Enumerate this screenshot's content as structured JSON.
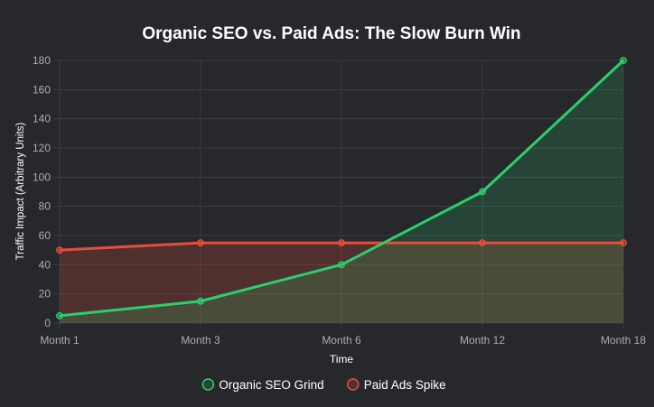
{
  "chart_data": {
    "type": "line",
    "title": "Organic SEO vs. Paid Ads: The Slow Burn Win",
    "xlabel": "Time",
    "ylabel": "Traffic Impact (Arbitrary Units)",
    "categories": [
      "Month 1",
      "Month 3",
      "Month 6",
      "Month 12",
      "Month 18"
    ],
    "ylim": [
      0,
      180
    ],
    "yticks": [
      0,
      20,
      40,
      60,
      80,
      100,
      120,
      140,
      160,
      180
    ],
    "grid": true,
    "legend_position": "bottom",
    "series": [
      {
        "name": "Organic SEO Grind",
        "values": [
          5,
          15,
          40,
          90,
          180
        ],
        "color": "#2ecc71",
        "fill": "rgba(46,204,113,0.18)"
      },
      {
        "name": "Paid Ads Spike",
        "values": [
          50,
          55,
          55,
          55,
          55
        ],
        "color": "#e74c3c",
        "fill": "rgba(231,76,60,0.22)"
      }
    ],
    "colors": {
      "background": "#26282b",
      "grid": "#3a3d41",
      "tick_text": "#a9adb3",
      "title_text": "#ffffff",
      "axis_label_text": "#ffffff",
      "legend_text": "#ffffff"
    }
  }
}
